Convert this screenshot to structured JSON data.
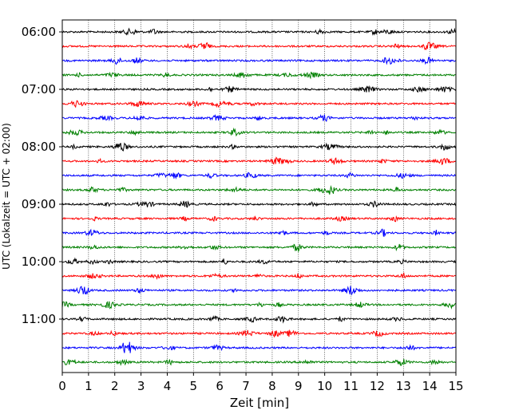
{
  "chart_data": {
    "type": "line",
    "title": "",
    "xlabel": "Zeit  [min]",
    "ylabel": "UTC (Lokalzeit = UTC + 02:00)",
    "xlim": [
      0,
      15
    ],
    "x_ticks": [
      "0",
      "1",
      "2",
      "3",
      "4",
      "5",
      "6",
      "7",
      "8",
      "9",
      "10",
      "11",
      "12",
      "13",
      "14",
      "15"
    ],
    "y_tick_labels": [
      "06:00",
      "07:00",
      "08:00",
      "09:00",
      "10:00",
      "11:00"
    ],
    "grid": "vertical dotted at each minute",
    "trace_interval_min": 15,
    "traces": [
      {
        "start": "06:00",
        "color": "#000000"
      },
      {
        "start": "06:15",
        "color": "#ff0000"
      },
      {
        "start": "06:30",
        "color": "#0000ff"
      },
      {
        "start": "06:45",
        "color": "#008000"
      },
      {
        "start": "07:00",
        "color": "#000000"
      },
      {
        "start": "07:15",
        "color": "#ff0000"
      },
      {
        "start": "07:30",
        "color": "#0000ff"
      },
      {
        "start": "07:45",
        "color": "#008000"
      },
      {
        "start": "08:00",
        "color": "#000000"
      },
      {
        "start": "08:15",
        "color": "#ff0000"
      },
      {
        "start": "08:30",
        "color": "#0000ff"
      },
      {
        "start": "08:45",
        "color": "#008000"
      },
      {
        "start": "09:00",
        "color": "#000000"
      },
      {
        "start": "09:15",
        "color": "#ff0000"
      },
      {
        "start": "09:30",
        "color": "#0000ff"
      },
      {
        "start": "09:45",
        "color": "#008000"
      },
      {
        "start": "10:00",
        "color": "#000000"
      },
      {
        "start": "10:15",
        "color": "#ff0000"
      },
      {
        "start": "10:30",
        "color": "#0000ff"
      },
      {
        "start": "10:45",
        "color": "#008000"
      },
      {
        "start": "11:00",
        "color": "#000000"
      },
      {
        "start": "11:15",
        "color": "#ff0000"
      },
      {
        "start": "11:30",
        "color": "#0000ff"
      },
      {
        "start": "11:45",
        "color": "#008000"
      }
    ]
  }
}
